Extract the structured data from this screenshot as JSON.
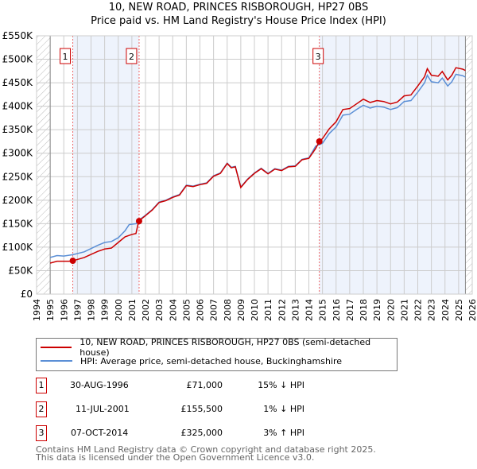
{
  "chart_data": {
    "type": "line",
    "title": "10, NEW ROAD, PRINCES RISBOROUGH, HP27 0BS",
    "subtitle": "Price paid vs. HM Land Registry's House Price Index (HPI)",
    "xlim": [
      1994,
      2026
    ],
    "ylim": [
      0,
      550000
    ],
    "x_ticks": [
      "1994",
      "1995",
      "1996",
      "1997",
      "1998",
      "1999",
      "2000",
      "2001",
      "2002",
      "2003",
      "2004",
      "2005",
      "2006",
      "2007",
      "2008",
      "2009",
      "2010",
      "2011",
      "2012",
      "2013",
      "2014",
      "2015",
      "2016",
      "2017",
      "2018",
      "2019",
      "2020",
      "2021",
      "2022",
      "2023",
      "2024",
      "2025",
      "2026"
    ],
    "y_ticks": [
      {
        "v": 0,
        "label": "£0"
      },
      {
        "v": 50000,
        "label": "£50K"
      },
      {
        "v": 100000,
        "label": "£100K"
      },
      {
        "v": 150000,
        "label": "£150K"
      },
      {
        "v": 200000,
        "label": "£200K"
      },
      {
        "v": 250000,
        "label": "£250K"
      },
      {
        "v": 300000,
        "label": "£300K"
      },
      {
        "v": 350000,
        "label": "£350K"
      },
      {
        "v": 400000,
        "label": "£400K"
      },
      {
        "v": 450000,
        "label": "£450K"
      },
      {
        "v": 500000,
        "label": "£500K"
      },
      {
        "v": 550000,
        "label": "£550K"
      }
    ],
    "grid": true,
    "legend_position": "below",
    "series": [
      {
        "name": "HPI: Average price, semi-detached house, Buckinghamshire",
        "color": "#5b8fd6",
        "x": [
          1995,
          1995.5,
          1996,
          1996.67,
          1997.5,
          1998.5,
          1999,
          1999.5,
          2000,
          2000.5,
          2000.8,
          2001.3,
          2001.5,
          2002,
          2002.5,
          2003,
          2003.5,
          2004,
          2004.5,
          2005,
          2005.5,
          2006,
          2006.5,
          2007,
          2007.5,
          2008,
          2008.3,
          2008.6,
          2009,
          2009.5,
          2010,
          2010.5,
          2011,
          2011.5,
          2012,
          2012.5,
          2013,
          2013.5,
          2014,
          2014.5,
          2015,
          2015.5,
          2016,
          2016.5,
          2017,
          2017.5,
          2018,
          2018.5,
          2019,
          2019.5,
          2020,
          2020.5,
          2021,
          2021.5,
          2022,
          2022.5,
          2022.7,
          2023,
          2023.5,
          2023.8,
          2024.2,
          2024.5,
          2024.8,
          2025.3,
          2025.5
        ],
        "y": [
          78000,
          82000,
          81000,
          84000,
          90000,
          104000,
          110000,
          112000,
          120000,
          135000,
          148000,
          150000,
          157000,
          168000,
          180000,
          196000,
          200000,
          207000,
          212000,
          232000,
          230000,
          234000,
          237000,
          252000,
          258000,
          279000,
          270000,
          272000,
          228000,
          245000,
          258000,
          268000,
          257000,
          267000,
          264000,
          272000,
          273000,
          287000,
          290000,
          315000,
          321000,
          342000,
          356000,
          381000,
          383000,
          393000,
          402000,
          396000,
          400000,
          398000,
          393000,
          397000,
          410000,
          412000,
          430000,
          450000,
          466000,
          452000,
          450000,
          460000,
          443000,
          452000,
          468000,
          465000,
          462000
        ]
      },
      {
        "name": "10, NEW ROAD, PRINCES RISBOROUGH, HP27 0BS (semi-detached house)",
        "color": "#cc0000",
        "x": [
          1995,
          1995.5,
          1996.5,
          1996.67,
          1997.5,
          1998.5,
          1999,
          1999.5,
          2000,
          2000.5,
          2001,
          2001.3,
          2001.5,
          2002,
          2002.5,
          2003,
          2003.5,
          2004,
          2004.5,
          2005,
          2005.5,
          2006,
          2006.5,
          2007,
          2007.5,
          2008,
          2008.3,
          2008.6,
          2009,
          2009.5,
          2010,
          2010.5,
          2011,
          2011.5,
          2012,
          2012.5,
          2013,
          2013.5,
          2014,
          2014.5,
          2014.77,
          2015,
          2015.5,
          2016,
          2016.5,
          2017,
          2017.5,
          2018,
          2018.5,
          2019,
          2019.5,
          2020,
          2020.5,
          2021,
          2021.5,
          2022,
          2022.5,
          2022.7,
          2023,
          2023.5,
          2023.8,
          2024.2,
          2024.5,
          2024.8,
          2025.3,
          2025.5
        ],
        "y": [
          66000,
          70000,
          70000,
          71000,
          78000,
          91000,
          96000,
          98000,
          110000,
          122000,
          127000,
          129000,
          155500,
          167000,
          179000,
          195000,
          199000,
          206000,
          211000,
          231000,
          229000,
          233000,
          236000,
          251000,
          257000,
          278000,
          269000,
          271000,
          227000,
          244000,
          257000,
          267000,
          256000,
          266000,
          263000,
          271000,
          272000,
          286000,
          289000,
          310000,
          325000,
          331000,
          352000,
          367000,
          393000,
          395000,
          405000,
          415000,
          408000,
          412000,
          410000,
          405000,
          409000,
          422000,
          424000,
          443000,
          463000,
          480000,
          466000,
          464000,
          474000,
          456000,
          466000,
          482000,
          479000,
          476000
        ]
      }
    ],
    "sales": [
      {
        "n": "1",
        "x": 1996.66,
        "y": 71000
      },
      {
        "n": "2",
        "x": 2001.53,
        "y": 155500
      },
      {
        "n": "3",
        "x": 2014.77,
        "y": 325000
      }
    ],
    "shaded": [
      [
        1996.66,
        2001.53
      ],
      [
        2014.77,
        2025.5
      ]
    ],
    "hatched": [
      [
        1994,
        1995
      ],
      [
        2025.5,
        2026
      ]
    ]
  },
  "legend": {
    "property": "10, NEW ROAD, PRINCES RISBOROUGH, HP27 0BS (semi-detached house)",
    "hpi": "HPI: Average price, semi-detached house, Buckinghamshire"
  },
  "transactions": [
    {
      "n": "1",
      "date": "30-AUG-1996",
      "price": "£71,000",
      "hpi": "15% ↓ HPI"
    },
    {
      "n": "2",
      "date": "11-JUL-2001",
      "price": "£155,500",
      "hpi": "1% ↓ HPI"
    },
    {
      "n": "3",
      "date": "07-OCT-2014",
      "price": "£325,000",
      "hpi": "3% ↑ HPI"
    }
  ],
  "footer": {
    "line1": "Contains HM Land Registry data © Crown copyright and database right 2025.",
    "line2": "This data is licensed under the Open Government Licence v3.0."
  }
}
